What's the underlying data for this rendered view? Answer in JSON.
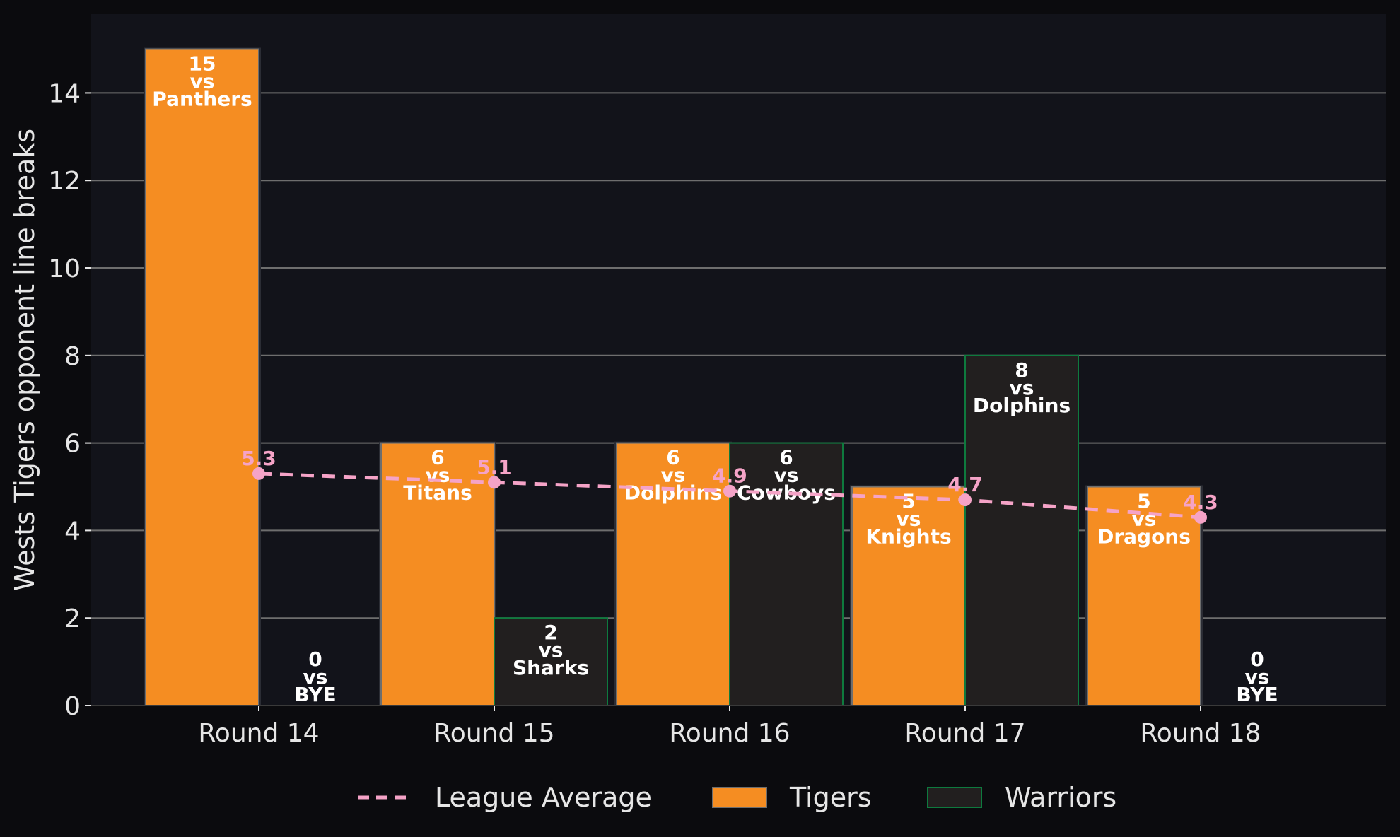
{
  "chart_data": {
    "type": "bar",
    "ylabel": "Wests Tigers opponent line breaks",
    "xlabel": "",
    "ylim": [
      0,
      15.8
    ],
    "yticks": [
      0,
      2,
      4,
      6,
      8,
      10,
      12,
      14
    ],
    "grid": true,
    "legend_position": "bottom",
    "categories": [
      "Round 14",
      "Round 15",
      "Round 16",
      "Round 17",
      "Round 18"
    ],
    "series": [
      {
        "name": "Tigers",
        "kind": "bar",
        "color": "#f58d22",
        "values": [
          15,
          6,
          6,
          5,
          5
        ],
        "opponents": [
          "Panthers",
          "Titans",
          "Dolphins",
          "Knights",
          "Dragons"
        ]
      },
      {
        "name": "Warriors",
        "kind": "bar",
        "color": "#221f1f",
        "edge_color": "#0e7a3e",
        "values": [
          0,
          2,
          6,
          8,
          0
        ],
        "opponents": [
          "BYE",
          "Sharks",
          "Cowboys",
          "Dolphins",
          "BYE"
        ]
      },
      {
        "name": "League Average",
        "kind": "line",
        "style": "dashed",
        "color": "#f5a3c7",
        "values": [
          5.3,
          5.1,
          4.9,
          4.7,
          4.3
        ],
        "labels": [
          "5.3",
          "5.1",
          "4.9",
          "4.7",
          "4.3"
        ]
      }
    ],
    "vs_word": "vs",
    "colors": {
      "background": "#0b0b0e",
      "plot_background": "#12131a",
      "grid": "#6e6e6e",
      "text": "#e6e6e6"
    }
  }
}
